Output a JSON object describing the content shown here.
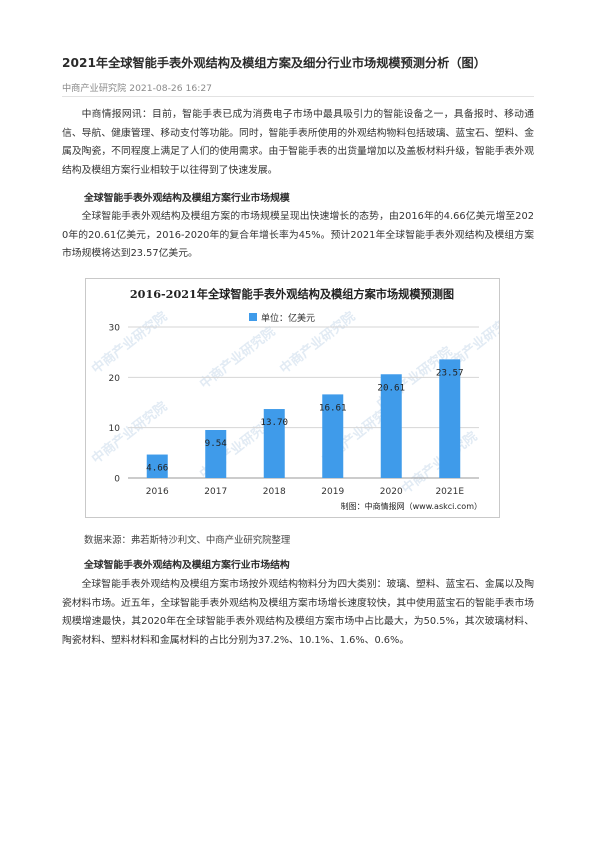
{
  "article": {
    "title": "2021年全球智能手表外观结构及模组方案及细分行业市场规模预测分析（图）",
    "meta": "中商产业研究院 2021-08-26 16:27",
    "intro": "中商情报网讯：目前，智能手表已成为消费电子市场中最具吸引力的智能设备之一，具备报时、移动通信、导航、健康管理、移动支付等功能。同时，智能手表所使用的外观结构物料包括玻璃、蓝宝石、塑料、金属及陶瓷，不同程度上满足了人们的使用需求。由于智能手表的出货量增加以及盖板材料升级，智能手表外观结构及模组方案行业相较于以往得到了快速发展。",
    "section1_heading": "全球智能手表外观结构及模组方案行业市场规模",
    "section1_text": "全球智能手表外观结构及模组方案的市场规模呈现出快速增长的态势，由2016年的4.66亿美元增至2020年的20.61亿美元，2016-2020年的复合年增长率为45%。预计2021年全球智能手表外观结构及模组方案市场规模将达到23.57亿美元。",
    "source_note": "数据来源：弗若斯特沙利文、中商产业研究院整理",
    "section2_heading": "全球智能手表外观结构及模组方案行业市场结构",
    "section2_text": "全球智能手表外观结构及模组方案市场按外观结构物料分为四大类别：玻璃、塑料、蓝宝石、金属以及陶瓷材料市场。近五年，全球智能手表外观结构及模组方案市场增长速度较快，其中使用蓝宝石的智能手表市场规模增速最快，其2020年在全球智能手表外观结构及模组方案市场中占比最大，为50.5%，其次玻璃材料、陶瓷材料、塑料材料和金属材料的占比分别为37.2%、10.1%、1.6%、0.6%。"
  },
  "chart_data": {
    "type": "bar",
    "title": "2016-2021年全球智能手表外观结构及模组方案市场规模预测图",
    "legend": "单位：亿美元",
    "categories": [
      "2016",
      "2017",
      "2018",
      "2019",
      "2020",
      "2021E"
    ],
    "values": [
      4.66,
      9.54,
      13.7,
      16.61,
      20.61,
      23.57
    ],
    "value_labels": [
      "4.66",
      "9.54",
      "13.70",
      "16.61",
      "20.61",
      "23.57"
    ],
    "yticks": [
      "0",
      "10",
      "20",
      "30"
    ],
    "ylim": [
      0,
      30
    ],
    "grid": true,
    "legend_position": "top-center",
    "bar_color": "#3f9bea",
    "credit": "制图：中商情报网（www.askci.com）",
    "watermark": "中商产业研究院"
  }
}
